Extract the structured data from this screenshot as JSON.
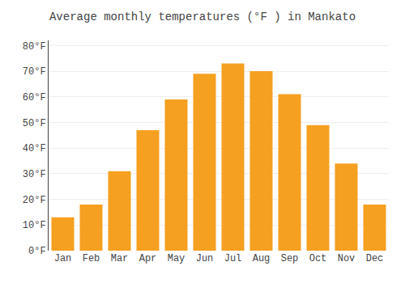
{
  "chart_data": {
    "type": "bar",
    "title": "Average monthly temperatures (°F ) in Mankato",
    "categories": [
      "Jan",
      "Feb",
      "Mar",
      "Apr",
      "May",
      "Jun",
      "Jul",
      "Aug",
      "Sep",
      "Oct",
      "Nov",
      "Dec"
    ],
    "values": [
      13,
      18,
      31,
      47,
      59,
      69,
      73,
      70,
      61,
      49,
      34,
      18
    ],
    "color": "#F5A020",
    "ylim": [
      0,
      82
    ],
    "yticks": [
      {
        "value": 0,
        "label": "0°F"
      },
      {
        "value": 10,
        "label": "10°F"
      },
      {
        "value": 20,
        "label": "20°F"
      },
      {
        "value": 30,
        "label": "30°F"
      },
      {
        "value": 40,
        "label": "40°F"
      },
      {
        "value": 50,
        "label": "50°F"
      },
      {
        "value": 60,
        "label": "60°F"
      },
      {
        "value": 70,
        "label": "70°F"
      },
      {
        "value": 80,
        "label": "80°F"
      }
    ],
    "grid": true
  }
}
